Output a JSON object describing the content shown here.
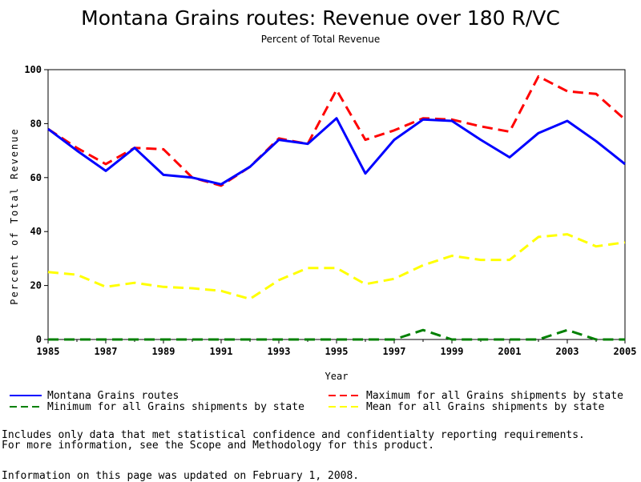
{
  "chart_data": {
    "type": "line",
    "title": "Montana Grains routes: Revenue over 180 R/VC",
    "subtitle": "Percent of Total Revenue",
    "xlabel": "Year",
    "ylabel": "Percent of Total Revenue",
    "xlim": [
      1985,
      2005
    ],
    "ylim": [
      0,
      100
    ],
    "x_ticks": [
      1985,
      1987,
      1989,
      1991,
      1993,
      1995,
      1997,
      1999,
      2001,
      2003,
      2005
    ],
    "y_ticks": [
      0,
      20,
      40,
      60,
      80,
      100
    ],
    "grid": false,
    "legend_position": "bottom",
    "x": [
      1985,
      1986,
      1987,
      1988,
      1989,
      1990,
      1991,
      1992,
      1993,
      1994,
      1995,
      1996,
      1997,
      1998,
      1999,
      2000,
      2001,
      2002,
      2003,
      2004,
      2005
    ],
    "series": [
      {
        "name": "Montana Grains routes",
        "color": "#0000ff",
        "dash": "solid",
        "values": [
          78,
          70,
          62.5,
          71,
          61,
          60,
          57.5,
          64,
          74,
          72.5,
          82,
          61.5,
          74,
          81.5,
          81,
          74,
          67.5,
          76.5,
          81,
          73.5,
          65
        ]
      },
      {
        "name": "Maximum for all Grains shipments by state",
        "color": "#ff0000",
        "dash": "dashed",
        "values": [
          78,
          71,
          65,
          71,
          70.5,
          60,
          57,
          64,
          74.5,
          72.5,
          92.5,
          74,
          77.5,
          82,
          81.5,
          79,
          77,
          97.5,
          92,
          91,
          81.5
        ]
      },
      {
        "name": "Minimum for all Grains shipments by state",
        "color": "#008000",
        "dash": "dashed",
        "values": [
          0,
          0,
          0,
          0,
          0,
          0,
          0,
          0,
          0,
          0,
          0,
          0,
          0,
          3.5,
          0,
          0,
          0,
          0,
          3.5,
          0,
          0
        ]
      },
      {
        "name": "Mean for all Grains shipments by state",
        "color": "#ffff00",
        "dash": "dashed",
        "values": [
          25,
          24,
          19.5,
          21,
          19.5,
          19,
          18,
          15,
          22,
          26.5,
          26.5,
          20.5,
          22.5,
          27.5,
          31,
          29.5,
          29.5,
          38,
          39,
          34.5,
          36
        ]
      }
    ]
  },
  "notes": {
    "line1": "Includes only data that met statistical confidence and confidentialty reporting requirements.",
    "line2": "For more information, see the Scope and Methodology for this product.",
    "updated": "Information on this page was updated on February 1, 2008."
  }
}
